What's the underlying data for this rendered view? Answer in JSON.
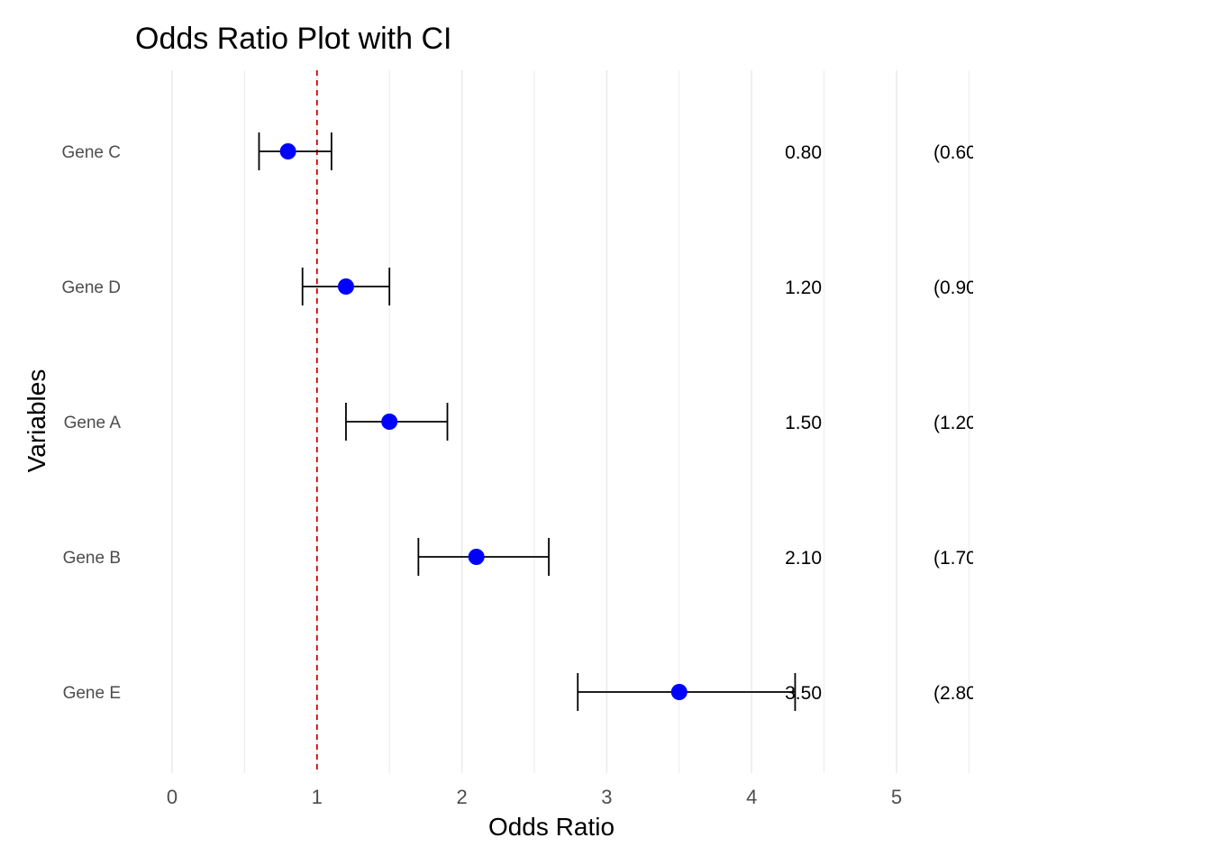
{
  "chart_data": {
    "type": "scatter",
    "title": "Odds Ratio Plot with CI",
    "xlabel": "Odds Ratio",
    "ylabel": "Variables",
    "xlim": [
      -0.07,
      5.55
    ],
    "x_ticks": [
      "0",
      "1",
      "2",
      "3",
      "4",
      "5"
    ],
    "reference_line": {
      "x": 1,
      "color": "#cc0000",
      "style": "dashed"
    },
    "grid": "vertical",
    "colors": {
      "point": "#0000ff",
      "errorbar": "#000000",
      "grid": "#ebebeb"
    },
    "rows": [
      {
        "label": "Gene C",
        "or": 0.8,
        "lower": 0.6,
        "upper": 1.1,
        "or_text": "0.80",
        "ci_text": "(0.60"
      },
      {
        "label": "Gene D",
        "or": 1.2,
        "lower": 0.9,
        "upper": 1.5,
        "or_text": "1.20",
        "ci_text": "(0.90"
      },
      {
        "label": "Gene A",
        "or": 1.5,
        "lower": 1.2,
        "upper": 1.9,
        "or_text": "1.50",
        "ci_text": "(1.20"
      },
      {
        "label": "Gene B",
        "or": 2.1,
        "lower": 1.7,
        "upper": 2.6,
        "or_text": "2.10",
        "ci_text": "(1.70"
      },
      {
        "label": "Gene E",
        "or": 3.5,
        "lower": 2.8,
        "upper": 4.3,
        "or_text": "3.50",
        "ci_text": "(2.80"
      }
    ]
  }
}
